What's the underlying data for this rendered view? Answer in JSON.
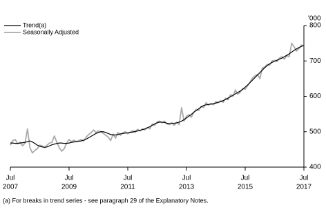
{
  "chart_data": {
    "type": "line",
    "y_unit": "'000",
    "footnote": "(a) For breaks in trend series - see paragraph 29 of the Explanatory Notes.",
    "legend_position": "upper left",
    "xlim": [
      "2007-07",
      "2017-07"
    ],
    "xticks": [
      {
        "value": "2007-07",
        "label": [
          "Jul",
          "2007"
        ]
      },
      {
        "value": "2009-07",
        "label": [
          "Jul",
          "2009"
        ]
      },
      {
        "value": "2011-07",
        "label": [
          "Jul",
          "2011"
        ]
      },
      {
        "value": "2013-07",
        "label": [
          "Jul",
          "2013"
        ]
      },
      {
        "value": "2015-07",
        "label": [
          "Jul",
          "2015"
        ]
      },
      {
        "value": "2017-07",
        "label": [
          "Jul",
          "2017"
        ]
      }
    ],
    "ylim": [
      400,
      800
    ],
    "yticks": [
      400,
      500,
      600,
      700,
      800
    ],
    "x": [
      "2007-07",
      "2007-08",
      "2007-09",
      "2007-10",
      "2007-11",
      "2007-12",
      "2008-01",
      "2008-02",
      "2008-03",
      "2008-04",
      "2008-05",
      "2008-06",
      "2008-07",
      "2008-08",
      "2008-09",
      "2008-10",
      "2008-11",
      "2008-12",
      "2009-01",
      "2009-02",
      "2009-03",
      "2009-04",
      "2009-05",
      "2009-06",
      "2009-07",
      "2009-08",
      "2009-09",
      "2009-10",
      "2009-11",
      "2009-12",
      "2010-01",
      "2010-02",
      "2010-03",
      "2010-04",
      "2010-05",
      "2010-06",
      "2010-07",
      "2010-08",
      "2010-09",
      "2010-10",
      "2010-11",
      "2010-12",
      "2011-01",
      "2011-02",
      "2011-03",
      "2011-04",
      "2011-05",
      "2011-06",
      "2011-07",
      "2011-08",
      "2011-09",
      "2011-10",
      "2011-11",
      "2011-12",
      "2012-01",
      "2012-02",
      "2012-03",
      "2012-04",
      "2012-05",
      "2012-06",
      "2012-07",
      "2012-08",
      "2012-09",
      "2012-10",
      "2012-11",
      "2012-12",
      "2013-01",
      "2013-02",
      "2013-03",
      "2013-04",
      "2013-05",
      "2013-06",
      "2013-07",
      "2013-08",
      "2013-09",
      "2013-10",
      "2013-11",
      "2013-12",
      "2014-01",
      "2014-02",
      "2014-03",
      "2014-04",
      "2014-05",
      "2014-06",
      "2014-07",
      "2014-08",
      "2014-09",
      "2014-10",
      "2014-11",
      "2014-12",
      "2015-01",
      "2015-02",
      "2015-03",
      "2015-04",
      "2015-05",
      "2015-06",
      "2015-07",
      "2015-08",
      "2015-09",
      "2015-10",
      "2015-11",
      "2015-12",
      "2016-01",
      "2016-02",
      "2016-03",
      "2016-04",
      "2016-05",
      "2016-06",
      "2016-07",
      "2016-08",
      "2016-09",
      "2016-10",
      "2016-11",
      "2016-12",
      "2017-01",
      "2017-02",
      "2017-03",
      "2017-04",
      "2017-05",
      "2017-06",
      "2017-07"
    ],
    "series": [
      {
        "name": "Trend(a)",
        "color": "#000000",
        "width": 1.2,
        "values": [
          468,
          468,
          467,
          467,
          468,
          469,
          470,
          472,
          474,
          471,
          467,
          462,
          459,
          457,
          456,
          457,
          460,
          463,
          465,
          467,
          468,
          468,
          467,
          467,
          468,
          470,
          471,
          472,
          473,
          474,
          476,
          479,
          483,
          487,
          491,
          495,
          498,
          500,
          500,
          498,
          495,
          492,
          491,
          491,
          492,
          494,
          495,
          496,
          497,
          498,
          499,
          501,
          502,
          504,
          506,
          508,
          511,
          514,
          518,
          522,
          525,
          527,
          527,
          526,
          524,
          523,
          523,
          524,
          525,
          527,
          530,
          534,
          539,
          544,
          549,
          555,
          560,
          565,
          570,
          574,
          576,
          577,
          578,
          579,
          581,
          583,
          585,
          588,
          591,
          595,
          599,
          603,
          607,
          611,
          615,
          620,
          626,
          632,
          639,
          646,
          653,
          660,
          667,
          674,
          681,
          687,
          692,
          696,
          699,
          702,
          705,
          708,
          712,
          716,
          720,
          725,
          730,
          734,
          738,
          741,
          744
        ]
      },
      {
        "name": "Seasonally Adjusted",
        "color": "#aaaaaa",
        "width": 1.8,
        "values": [
          462,
          475,
          478,
          466,
          470,
          460,
          468,
          508,
          455,
          440,
          447,
          452,
          462,
          460,
          455,
          462,
          468,
          470,
          488,
          470,
          455,
          445,
          452,
          468,
          478,
          472,
          476,
          472,
          475,
          478,
          474,
          485,
          492,
          497,
          505,
          498,
          502,
          500,
          495,
          490,
          485,
          475,
          493,
          482,
          498,
          490,
          497,
          500,
          494,
          499,
          503,
          498,
          507,
          502,
          508,
          505,
          512,
          508,
          522,
          518,
          528,
          530,
          525,
          530,
          522,
          520,
          526,
          518,
          527,
          520,
          568,
          530,
          544,
          548,
          541,
          555,
          563,
          560,
          572,
          568,
          582,
          575,
          580,
          576,
          585,
          582,
          588,
          583,
          595,
          590,
          605,
          600,
          618,
          606,
          612,
          622,
          620,
          630,
          640,
          652,
          658,
          662,
          650,
          680,
          683,
          690,
          688,
          700,
          702,
          698,
          708,
          712,
          705,
          715,
          712,
          750,
          740,
          728,
          735,
          745,
          742
        ]
      }
    ]
  }
}
